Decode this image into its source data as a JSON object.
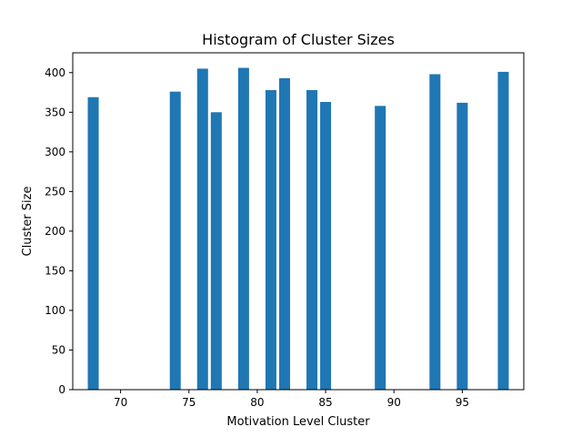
{
  "chart_data": {
    "type": "bar",
    "title": "Histogram of Cluster Sizes",
    "xlabel": "Motivation Level Cluster",
    "ylabel": "Cluster Size",
    "x": [
      68,
      74,
      76,
      77,
      79,
      81,
      82,
      84,
      85,
      89,
      93,
      95,
      98
    ],
    "values": [
      369,
      376,
      405,
      350,
      406,
      378,
      393,
      378,
      363,
      358,
      398,
      362,
      401
    ],
    "xlim": [
      66.5,
      99.5
    ],
    "ylim": [
      0,
      425
    ],
    "xticks": [
      70,
      75,
      80,
      85,
      90,
      95
    ],
    "yticks": [
      0,
      50,
      100,
      150,
      200,
      250,
      300,
      350,
      400
    ],
    "bar_width": 0.8,
    "color": "#1f77b4",
    "grid": false,
    "legend": "none"
  }
}
